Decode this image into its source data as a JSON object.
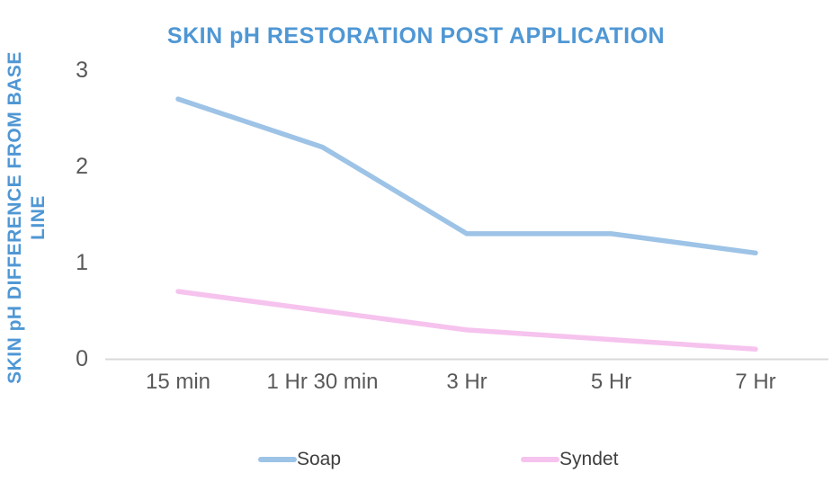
{
  "chart_data": {
    "type": "line",
    "title": "SKIN pH RESTORATION POST APPLICATION",
    "ylabel": "SKIN pH DIFFERENCE FROM BASE LINE",
    "xlabel": "",
    "categories": [
      "15 min",
      "1 Hr 30 min",
      "3 Hr",
      "5 Hr",
      "7 Hr"
    ],
    "series": [
      {
        "name": "Soap",
        "color": "#9dc3e6",
        "values": [
          2.7,
          2.2,
          1.3,
          1.3,
          1.1
        ]
      },
      {
        "name": "Syndet",
        "color": "#f6c3ee",
        "values": [
          0.7,
          0.5,
          0.3,
          0.2,
          0.1
        ]
      }
    ],
    "yticks": [
      0,
      1,
      2,
      3
    ],
    "ylim": [
      0,
      3.2
    ],
    "grid": false,
    "legend_position": "bottom"
  },
  "colors": {
    "title_text": "#4f97d4",
    "axis_line": "#d9d9d9",
    "tick_text": "#595959",
    "legend_text": "#3f3f3f",
    "background": "#ffffff"
  }
}
